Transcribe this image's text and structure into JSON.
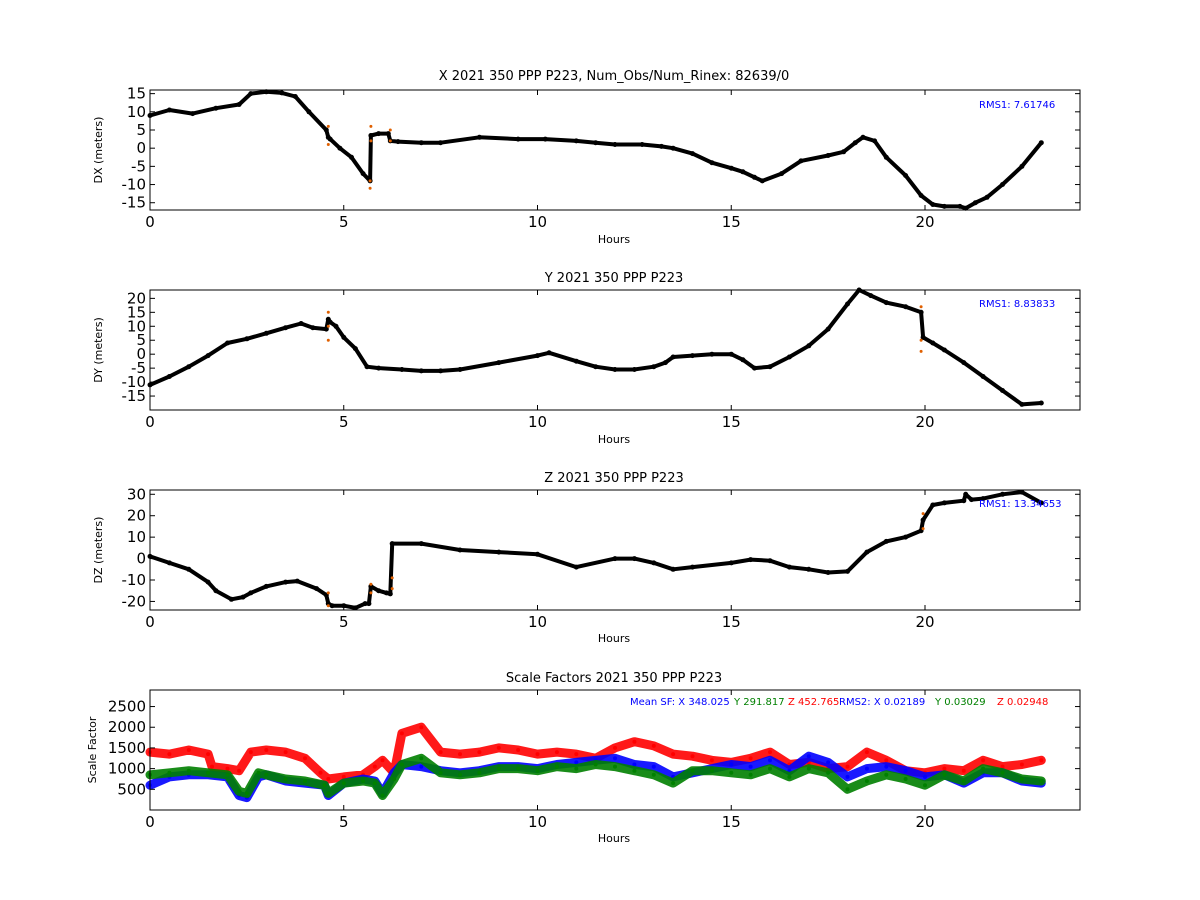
{
  "chart_data": [
    {
      "type": "scatter",
      "title": "X 2021 350 PPP  P223, Num_Obs/Num_Rinex: 82639/0",
      "xlabel": "Hours",
      "ylabel": "DX (meters)",
      "xlim": [
        0,
        24
      ],
      "ylim": [
        -17,
        16
      ],
      "xticks": [
        0,
        5,
        10,
        15,
        20
      ],
      "yticks": [
        -15,
        -10,
        -5,
        0,
        5,
        10,
        15
      ],
      "grid": false,
      "annotation": "RMS1:  7.61746",
      "annotation_color": "#0000ff",
      "series": [
        {
          "color": "#000000",
          "x": [
            0,
            0.5,
            1.1,
            1.7,
            2.3,
            2.6,
            3.0,
            3.4,
            3.75,
            4.1,
            4.55,
            4.6,
            4.65,
            4.9,
            5.2,
            5.5,
            5.68,
            5.7,
            5.9,
            6.15,
            6.2,
            6.4,
            7,
            7.5,
            8.5,
            9.5,
            10.2,
            11,
            11.5,
            12,
            12.7,
            13.2,
            13.5,
            14,
            14.5,
            15,
            15.3,
            15.6,
            15.8,
            16.3,
            16.8,
            17.5,
            17.9,
            18.2,
            18.4,
            18.7,
            19,
            19.5,
            19.9,
            20.2,
            20.5,
            20.9,
            21.05,
            21.3,
            21.6,
            22,
            22.5,
            23.0
          ],
          "y": [
            9,
            10.5,
            9.5,
            11,
            12,
            15,
            15.5,
            15.2,
            14.2,
            10,
            5,
            3,
            2.5,
            0,
            -2.5,
            -7,
            -9,
            3.5,
            4,
            4,
            2,
            1.8,
            1.5,
            1.5,
            3,
            2.5,
            2.5,
            2,
            1.5,
            1,
            1,
            0.5,
            0,
            -1.5,
            -4,
            -5.5,
            -6.5,
            -8,
            -9,
            -7,
            -3.5,
            -2,
            -1,
            1.5,
            3,
            2,
            -2.5,
            -7.5,
            -13,
            -15.5,
            -16,
            -16,
            -16.5,
            -15,
            -13.5,
            -10,
            -5,
            1.5
          ]
        },
        {
          "color": "#e06000",
          "x": [
            4.6,
            4.6,
            5.68,
            5.68,
            5.7,
            5.7,
            6.2,
            6.2
          ],
          "y": [
            6,
            1,
            -11,
            -9,
            6,
            2,
            5,
            2
          ]
        }
      ]
    },
    {
      "type": "scatter",
      "title": "Y 2021 350 PPP  P223",
      "xlabel": "Hours",
      "ylabel": "DY (meters)",
      "xlim": [
        0,
        24
      ],
      "ylim": [
        -20,
        23
      ],
      "xticks": [
        0,
        5,
        10,
        15,
        20
      ],
      "yticks": [
        -15,
        -10,
        -5,
        0,
        5,
        10,
        15,
        20
      ],
      "grid": false,
      "annotation": "RMS1:  8.83833",
      "annotation_color": "#0000ff",
      "series": [
        {
          "color": "#000000",
          "x": [
            0,
            0.5,
            1,
            1.5,
            2,
            2.5,
            3,
            3.5,
            3.9,
            4.2,
            4.55,
            4.6,
            4.65,
            4.8,
            5.0,
            5.3,
            5.6,
            5.9,
            6.5,
            7,
            7.5,
            8,
            9,
            10,
            10.3,
            11,
            11.5,
            12,
            12.5,
            13,
            13.3,
            13.5,
            14,
            14.5,
            15,
            15.3,
            15.6,
            16,
            16.5,
            17,
            17.5,
            18,
            18.3,
            18.6,
            19,
            19.5,
            19.9,
            19.95,
            20.2,
            20.5,
            21,
            21.5,
            22,
            22.5,
            23.0
          ],
          "y": [
            -11,
            -8,
            -4.5,
            -0.5,
            4,
            5.5,
            7.5,
            9.5,
            11,
            9.5,
            9,
            12.5,
            11.5,
            10,
            6,
            2,
            -4.5,
            -5,
            -5.5,
            -6,
            -6,
            -5.5,
            -3,
            -0.5,
            0.5,
            -2.5,
            -4.5,
            -5.5,
            -5.5,
            -4.5,
            -3,
            -1,
            -0.5,
            0,
            0,
            -2,
            -5,
            -4.5,
            -1,
            3,
            9,
            18,
            23,
            21,
            18.5,
            17,
            15,
            6,
            4,
            1.5,
            -3,
            -8,
            -13,
            -18,
            -17.5
          ]
        },
        {
          "color": "#e06000",
          "x": [
            4.6,
            4.6,
            4.6,
            19.9,
            19.9,
            19.9
          ],
          "y": [
            15,
            10,
            5,
            17,
            5,
            1
          ]
        }
      ]
    },
    {
      "type": "scatter",
      "title": "Z 2021 350 PPP  P223",
      "xlabel": "Hours",
      "ylabel": "DZ (meters)",
      "xlim": [
        0,
        24
      ],
      "ylim": [
        -24,
        32
      ],
      "xticks": [
        0,
        5,
        10,
        15,
        20
      ],
      "yticks": [
        -20,
        -10,
        0,
        10,
        20,
        30
      ],
      "grid": false,
      "annotation": "RMS1: 13.34653",
      "annotation_color": "#0000ff",
      "series": [
        {
          "color": "#000000",
          "x": [
            0,
            0.5,
            1,
            1.5,
            1.7,
            2.1,
            2.4,
            2.6,
            3,
            3.5,
            3.8,
            4.3,
            4.55,
            4.6,
            4.7,
            5.0,
            5.3,
            5.55,
            5.65,
            5.7,
            5.9,
            6.1,
            6.2,
            6.25,
            7,
            8,
            9,
            10,
            11,
            12,
            12.5,
            13,
            13.5,
            14,
            15,
            15.5,
            16,
            16.5,
            17,
            17.5,
            18,
            18.5,
            19,
            19.5,
            19.9,
            19.95,
            20.2,
            20.5,
            21,
            21.05,
            21.2,
            21.5,
            22,
            22.5,
            23.0
          ],
          "y": [
            1,
            -2,
            -5,
            -11,
            -15,
            -19,
            -18,
            -16,
            -13,
            -11,
            -10.5,
            -14,
            -17,
            -21,
            -22,
            -22,
            -23,
            -21,
            -21,
            -13,
            -15,
            -16,
            -16.5,
            7,
            7,
            4,
            3,
            2,
            -4,
            0,
            0,
            -2,
            -5,
            -4,
            -2,
            -0.5,
            -1,
            -4,
            -5,
            -6.5,
            -6,
            3,
            8,
            10,
            13,
            18,
            25,
            26,
            27,
            30,
            27.5,
            28,
            30,
            31,
            26
          ]
        },
        {
          "color": "#e06000",
          "x": [
            4.6,
            4.6,
            5.7,
            5.7,
            6.25,
            6.25,
            19.95,
            19.95
          ],
          "y": [
            -16,
            -22,
            -12,
            -16,
            -14,
            -9,
            21,
            14
          ]
        }
      ]
    },
    {
      "type": "scatter",
      "title": "Scale Factors 2021 350 PPP  P223",
      "xlabel": "Hours",
      "ylabel": "Scale Factor",
      "xlim": [
        0,
        24
      ],
      "ylim": [
        0,
        2900
      ],
      "xticks": [
        0,
        5,
        10,
        15,
        20
      ],
      "yticks": [
        500,
        1000,
        1500,
        2000,
        2500
      ],
      "grid": false,
      "annotations": [
        {
          "text": "Mean SF: X 348.025",
          "color": "#0000ff"
        },
        {
          "text": "Y 291.817",
          "color": "#008000"
        },
        {
          "text": "Z 452.765",
          "color": "#ff0000"
        },
        {
          "text": "RMS2: X  0.02189",
          "color": "#0000ff"
        },
        {
          "text": "Y  0.03029",
          "color": "#008000"
        },
        {
          "text": "Z  0.02948",
          "color": "#ff0000"
        }
      ],
      "series": [
        {
          "color": "#ff0000",
          "x": [
            0,
            0.5,
            1,
            1.5,
            1.6,
            2,
            2.3,
            2.6,
            3,
            3.5,
            4,
            4.4,
            4.6,
            5,
            5.5,
            5.8,
            6.0,
            6.3,
            6.5,
            7,
            7.5,
            8,
            8.5,
            9,
            9.5,
            10,
            10.5,
            11,
            11.5,
            12,
            12.5,
            13,
            13.5,
            14,
            14.5,
            15,
            15.5,
            16,
            16.5,
            17,
            17.5,
            18,
            18.5,
            19,
            19.5,
            20,
            20.5,
            21,
            21.5,
            22,
            22.5,
            23.0
          ],
          "y": [
            1400,
            1350,
            1450,
            1350,
            1050,
            1000,
            950,
            1400,
            1450,
            1400,
            1250,
            900,
            750,
            800,
            850,
            1050,
            1200,
            900,
            1850,
            2000,
            1400,
            1350,
            1400,
            1500,
            1450,
            1350,
            1400,
            1350,
            1250,
            1500,
            1650,
            1550,
            1350,
            1300,
            1200,
            1150,
            1250,
            1400,
            1100,
            1150,
            1000,
            1050,
            1400,
            1200,
            950,
            900,
            1000,
            950,
            1200,
            1050,
            1100,
            1200
          ]
        },
        {
          "color": "#0000ff",
          "x": [
            0,
            0.5,
            1,
            1.5,
            2,
            2.3,
            2.5,
            2.8,
            3,
            3.5,
            4,
            4.5,
            4.6,
            5,
            5.5,
            5.8,
            6,
            6.3,
            6.5,
            7,
            7.5,
            8,
            8.5,
            9,
            9.5,
            10,
            10.5,
            11,
            11.5,
            12,
            12.5,
            13,
            13.5,
            14,
            14.5,
            15,
            15.5,
            16,
            16.5,
            17,
            17.5,
            18,
            18.5,
            19,
            19.5,
            20,
            20.5,
            21,
            21.5,
            22,
            22.5,
            23.0
          ],
          "y": [
            600,
            800,
            850,
            850,
            800,
            350,
            300,
            800,
            850,
            700,
            650,
            600,
            350,
            650,
            750,
            700,
            400,
            900,
            1100,
            1050,
            950,
            900,
            950,
            1050,
            1050,
            1000,
            1100,
            1150,
            1200,
            1250,
            1100,
            1050,
            800,
            900,
            1000,
            1100,
            1050,
            1200,
            950,
            1300,
            1150,
            800,
            1000,
            1050,
            950,
            800,
            850,
            650,
            900,
            900,
            700,
            650
          ]
        },
        {
          "color": "#008000",
          "x": [
            0,
            0.5,
            1,
            1.5,
            2,
            2.3,
            2.5,
            2.8,
            3,
            3.5,
            4,
            4.5,
            4.6,
            5,
            5.5,
            5.8,
            6,
            6.3,
            6.5,
            7,
            7.5,
            8,
            8.5,
            9,
            9.5,
            10,
            10.5,
            11,
            11.5,
            12,
            12.5,
            13,
            13.5,
            14,
            14.5,
            15,
            15.5,
            16,
            16.5,
            17,
            17.5,
            18,
            18.5,
            19,
            19.5,
            20,
            20.5,
            21,
            21.5,
            22,
            22.5,
            23.0
          ],
          "y": [
            850,
            900,
            950,
            900,
            850,
            450,
            400,
            900,
            850,
            750,
            700,
            600,
            400,
            650,
            700,
            650,
            350,
            750,
            1100,
            1250,
            900,
            850,
            900,
            1000,
            1000,
            950,
            1050,
            1000,
            1100,
            1050,
            950,
            850,
            650,
            950,
            950,
            900,
            850,
            1000,
            800,
            1000,
            900,
            500,
            700,
            850,
            750,
            600,
            850,
            700,
            1000,
            900,
            750,
            700
          ]
        }
      ]
    }
  ]
}
